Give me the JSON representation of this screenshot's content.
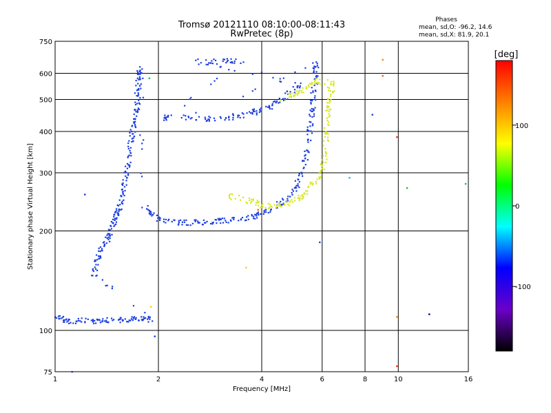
{
  "chart_data": {
    "type": "scatter",
    "title": "Tromsø 20121110 08:10:00-08:11:43",
    "subtitle": "RwPretec (8p)",
    "xlabel": "Frequency [MHz]",
    "ylabel": "Stationary phase Virtual Height [km]",
    "x_scale": "log",
    "y_scale": "log",
    "xlim": [
      1,
      16
    ],
    "ylim": [
      75,
      750
    ],
    "x_ticks": [
      1,
      2,
      4,
      6,
      8,
      10,
      16
    ],
    "y_ticks": [
      75,
      100,
      200,
      300,
      400,
      500,
      600,
      750
    ],
    "x_gridlines": [
      2,
      4,
      6,
      8,
      10
    ],
    "y_gridlines": [
      100,
      200,
      300,
      400,
      500,
      600
    ],
    "grid": true,
    "phase_stats": {
      "title": "Phases",
      "line_o": "mean, sd,O: -96.2, 14.6",
      "line_x": "mean, sd,X:  81.9, 20.1"
    },
    "colorbar": {
      "label": "[deg]",
      "range": [
        -180,
        180
      ],
      "ticks": [
        100,
        0,
        -100
      ],
      "colors": [
        "#ff0000",
        "#ff8000",
        "#ffff00",
        "#00ff00",
        "#00ffff",
        "#0000ff",
        "#6a00c8",
        "#000000"
      ]
    },
    "point_color_o": "#1a3ee0",
    "point_color_x": "#d8e820",
    "series": [
      {
        "name": "O",
        "phase_mean": -96.2,
        "trace": [
          [
            1.0,
            112
          ],
          [
            1.05,
            108
          ],
          [
            1.1,
            106
          ],
          [
            1.2,
            107
          ],
          [
            1.3,
            107
          ],
          [
            1.4,
            108
          ],
          [
            1.5,
            107
          ],
          [
            1.6,
            108
          ],
          [
            1.7,
            108
          ],
          [
            1.8,
            109
          ],
          [
            1.9,
            108
          ],
          [
            1.3,
            148
          ],
          [
            1.32,
            160
          ],
          [
            1.35,
            170
          ],
          [
            1.38,
            180
          ],
          [
            1.42,
            190
          ],
          [
            1.45,
            200
          ],
          [
            1.48,
            210
          ],
          [
            1.5,
            220
          ],
          [
            1.52,
            230
          ],
          [
            1.55,
            245
          ],
          [
            1.57,
            260
          ],
          [
            1.6,
            280
          ],
          [
            1.62,
            300
          ],
          [
            1.64,
            330
          ],
          [
            1.66,
            360
          ],
          [
            1.68,
            390
          ],
          [
            1.7,
            420
          ],
          [
            1.72,
            450
          ],
          [
            1.73,
            480
          ],
          [
            1.74,
            520
          ],
          [
            1.75,
            560
          ],
          [
            1.76,
            600
          ],
          [
            1.77,
            620
          ],
          [
            1.8,
            240
          ],
          [
            1.9,
            225
          ],
          [
            2.0,
            218
          ],
          [
            2.2,
            213
          ],
          [
            2.4,
            212
          ],
          [
            2.6,
            212
          ],
          [
            2.8,
            213
          ],
          [
            3.0,
            214
          ],
          [
            3.2,
            215
          ],
          [
            3.5,
            218
          ],
          [
            3.8,
            222
          ],
          [
            4.0,
            226
          ],
          [
            4.3,
            234
          ],
          [
            4.6,
            245
          ],
          [
            4.9,
            260
          ],
          [
            5.1,
            280
          ],
          [
            5.3,
            310
          ],
          [
            5.4,
            340
          ],
          [
            5.5,
            380
          ],
          [
            5.55,
            420
          ],
          [
            5.6,
            460
          ],
          [
            5.65,
            500
          ],
          [
            5.7,
            550
          ],
          [
            5.75,
            600
          ],
          [
            5.8,
            640
          ],
          [
            2.35,
            440
          ],
          [
            2.6,
            438
          ],
          [
            2.9,
            437
          ],
          [
            3.2,
            440
          ],
          [
            3.5,
            448
          ],
          [
            3.8,
            458
          ],
          [
            4.0,
            465
          ],
          [
            4.3,
            480
          ],
          [
            4.6,
            500
          ],
          [
            4.9,
            530
          ],
          [
            5.2,
            560
          ],
          [
            2.6,
            650
          ],
          [
            2.9,
            650
          ],
          [
            3.2,
            655
          ],
          [
            3.5,
            660
          ],
          [
            2.1,
            440
          ]
        ]
      },
      {
        "name": "X",
        "phase_mean": 81.9,
        "trace": [
          [
            3.2,
            255
          ],
          [
            3.5,
            250
          ],
          [
            3.8,
            245
          ],
          [
            4.0,
            240
          ],
          [
            4.3,
            238
          ],
          [
            4.6,
            240
          ],
          [
            4.9,
            245
          ],
          [
            5.2,
            255
          ],
          [
            5.5,
            270
          ],
          [
            5.8,
            290
          ],
          [
            6.0,
            310
          ],
          [
            6.1,
            340
          ],
          [
            6.15,
            380
          ],
          [
            6.2,
            420
          ],
          [
            6.25,
            460
          ],
          [
            6.3,
            500
          ],
          [
            6.35,
            540
          ],
          [
            6.4,
            580
          ],
          [
            4.6,
            505
          ],
          [
            5.0,
            520
          ],
          [
            5.4,
            540
          ],
          [
            5.8,
            570
          ]
        ]
      }
    ],
    "outliers": [
      {
        "x": 1.12,
        "y": 75,
        "c": "#6060ff"
      },
      {
        "x": 1.22,
        "y": 258,
        "c": "#1a3ee0"
      },
      {
        "x": 1.88,
        "y": 580,
        "c": "#00cc40"
      },
      {
        "x": 1.9,
        "y": 118,
        "c": "#ffcc00"
      },
      {
        "x": 1.95,
        "y": 96,
        "c": "#1a3ee0"
      },
      {
        "x": 3.6,
        "y": 155,
        "c": "#ffd000"
      },
      {
        "x": 3.9,
        "y": 232,
        "c": "#ff6000"
      },
      {
        "x": 5.9,
        "y": 185,
        "c": "#1a3ee0"
      },
      {
        "x": 6.5,
        "y": 530,
        "c": "#c0ff00"
      },
      {
        "x": 7.2,
        "y": 290,
        "c": "#00c0ff"
      },
      {
        "x": 8.4,
        "y": 450,
        "c": "#1a3ee0"
      },
      {
        "x": 9.0,
        "y": 660,
        "c": "#ff8000"
      },
      {
        "x": 9.0,
        "y": 590,
        "c": "#ff6000"
      },
      {
        "x": 9.9,
        "y": 385,
        "c": "#ff3000"
      },
      {
        "x": 9.9,
        "y": 110,
        "c": "#ff8000"
      },
      {
        "x": 9.9,
        "y": 78,
        "c": "#ff3000"
      },
      {
        "x": 10.6,
        "y": 270,
        "c": "#00cc40"
      },
      {
        "x": 12.3,
        "y": 112,
        "c": "#000080"
      },
      {
        "x": 15.7,
        "y": 278,
        "c": "#00cc40"
      }
    ]
  }
}
